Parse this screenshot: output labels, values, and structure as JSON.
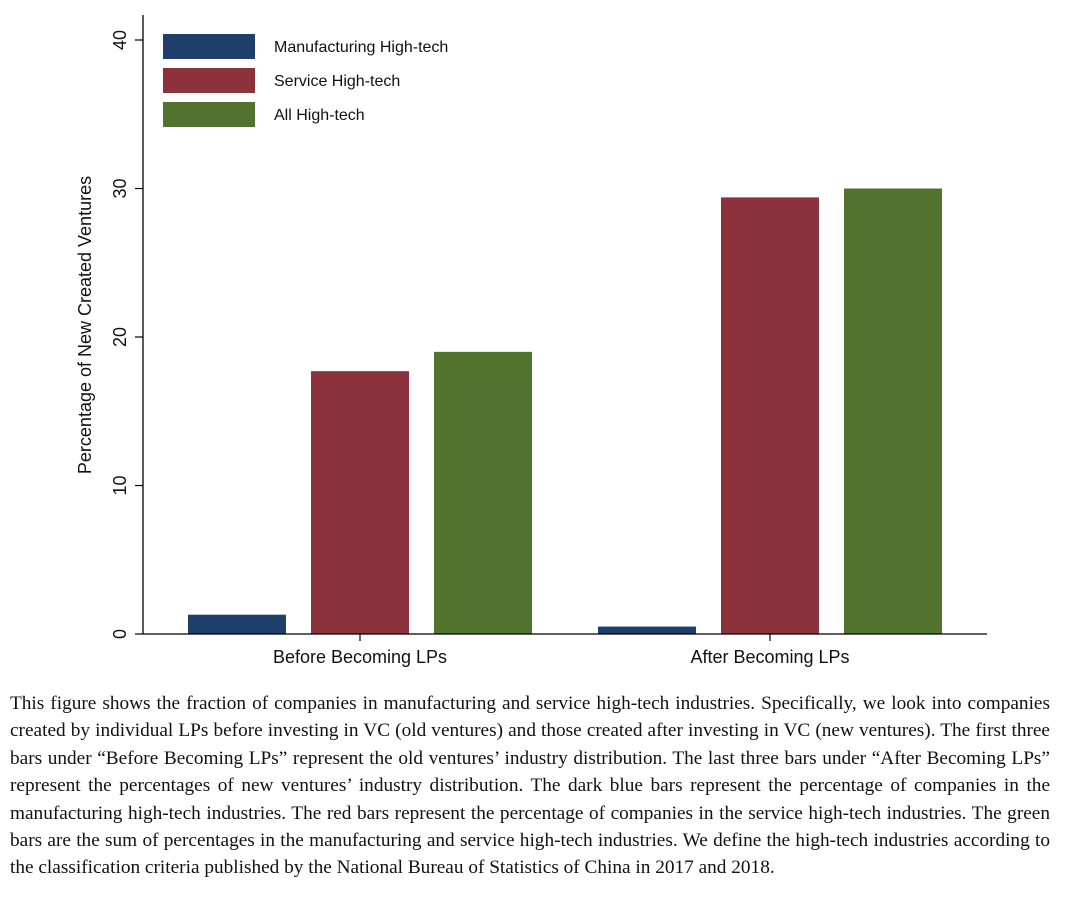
{
  "chart_data": {
    "type": "bar",
    "categories": [
      "Before Becoming LPs",
      "After Becoming LPs"
    ],
    "series": [
      {
        "name": "Manufacturing High-tech",
        "color": "#1f3f6b",
        "values": [
          1.3,
          0.5
        ]
      },
      {
        "name": "Service High-tech",
        "color": "#8b323c",
        "values": [
          17.7,
          29.4
        ]
      },
      {
        "name": "All High-tech",
        "color": "#52732d",
        "values": [
          19.0,
          30.0
        ]
      }
    ],
    "ylabel": "Percentage of New Created Ventures",
    "xlabel": "",
    "ylim": [
      0,
      40
    ],
    "yticks": [
      0,
      10,
      20,
      30,
      40
    ],
    "grid": false,
    "legend_position": "top-left"
  },
  "caption": "This figure shows the fraction of companies in manufacturing and service high-tech industries. Specifically, we look into companies created by individual LPs before investing in VC (old ventures) and those created after investing in VC (new ventures). The first three bars under “Before Becoming LPs” represent the old ventures’ industry distribution. The last three bars under “After Becoming LPs” represent the percentages of new ventures’ industry distribution. The dark blue bars represent the percentage of companies in the manufacturing high-tech industries. The red bars represent the percentage of companies in the service high-tech industries. The green bars are the sum of percentages in the manufacturing and service high-tech industries. We define the high-tech industries according to the classification criteria published by the National Bureau of Statistics of China in 2017 and 2018."
}
